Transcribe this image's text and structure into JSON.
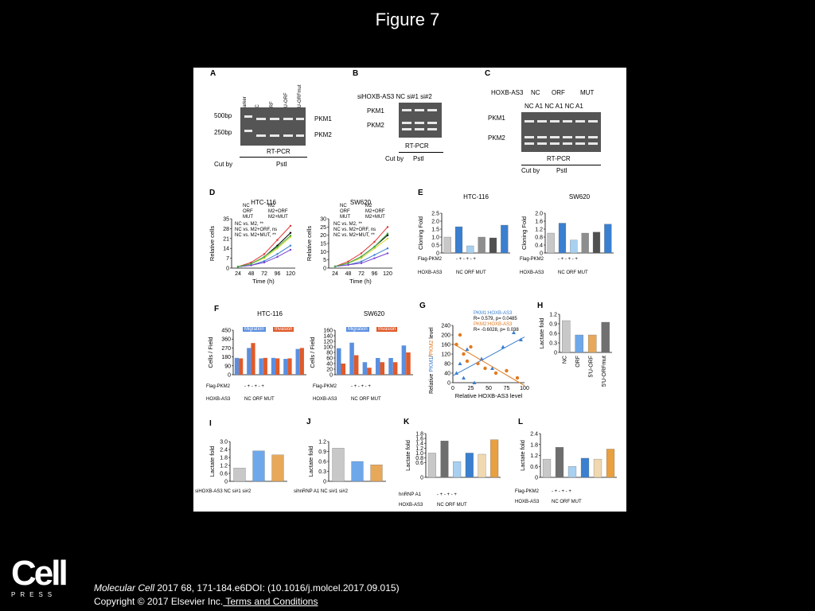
{
  "slide": {
    "title": "Figure 7"
  },
  "citation": {
    "journal": "Molecular Cell",
    "ref": " 2017 68, 171-184.e6DOI: (10.1016/j.molcel.2017.09.015)",
    "copyright": "Copyright © 2017 Elsevier Inc.",
    "link": " Terms and Conditions"
  },
  "logo": {
    "word": "Cell",
    "press": "PRESS"
  },
  "panelA": {
    "label": "A",
    "lanes": [
      "marker",
      "NC",
      "ORF",
      "5'U-ORF",
      "5'U-ORFmut"
    ],
    "size1": "500bp",
    "size2": "250bp",
    "band1": "PKM1",
    "band2": "PKM2",
    "method": "RT-PCR",
    "cut": "Cut by",
    "enzyme": "PstI"
  },
  "panelB": {
    "label": "B",
    "header": "siHOXB-AS3  NC  si#1  si#2",
    "band1": "PKM1",
    "band2": "PKM2",
    "method": "RT-PCR",
    "cut": "Cut by",
    "enzyme": "PstI"
  },
  "panelC": {
    "label": "C",
    "group": "HOXB-AS3",
    "g1": "NC",
    "g2": "ORF",
    "g3": "MUT",
    "sub": "NC A1  NC  A1  NC  A1",
    "band1": "PKM1",
    "band2": "PKM2",
    "method": "RT-PCR",
    "cut": "Cut by",
    "enzyme": "PstI"
  },
  "panelD": {
    "label": "D",
    "legend": [
      "NC",
      "M2",
      "ORF",
      "M2+ORF",
      "MUT",
      "M2+MUT"
    ],
    "stats": [
      "NC vs. M2, **",
      "NC vs. M2+ORF, ns",
      "NC vs. M2+MUT, **"
    ],
    "stats2": [
      "NC vs. M2, **",
      "NC vs. M2+ORF, ns",
      "NC vs. M2+MUT, **"
    ]
  },
  "panelE": {
    "label": "E",
    "rows": {
      "flag": "Flag-PKM2",
      "hox": "HOXB-AS3",
      "signs": "-   +    -   +    -   +",
      "groups": "NC     ORF     MUT"
    }
  },
  "panelF": {
    "label": "F",
    "legend": [
      "Migration",
      "Invasion"
    ],
    "rows": {
      "flag": "Flag-PKM2",
      "hox": "HOXB-AS3",
      "signs": "-   +    -   +    -   +",
      "groups": "NC     ORF     MUT"
    }
  },
  "panelG": {
    "label": "G",
    "legend1": "PKM1:HOXB-AS3",
    "stat1": "R= 0.579, p= 0.0485",
    "legend2": "PKM2:HOXB-AS3",
    "stat2": "R= -0.6028, p= 0.038",
    "ylabel_a": "Relative ",
    "ylabel_b": "PKM1",
    "ylabel_c": "/",
    "ylabel_d": "PKM2",
    "ylabel_e": " level"
  },
  "panelH": {
    "label": "H"
  },
  "panelI": {
    "label": "I",
    "row": "siHOXB-AS3  NC    si#1   si#2"
  },
  "panelJ": {
    "label": "J",
    "row": "sihnRNP A1  NC    si#1   si#2"
  },
  "panelK": {
    "label": "K",
    "rows": {
      "flag": "hnRNP A1",
      "hox": "HOXB-AS3",
      "signs": "-   +    -   +    -   +",
      "groups": "NC     ORF     MUT"
    }
  },
  "panelL": {
    "label": "L",
    "rows": {
      "flag": "Flag-PKM2",
      "hox": "HOXB-AS3",
      "signs": "-   +    -   +    -   +",
      "groups": "NC     ORF     MUT"
    }
  },
  "chart_data": [
    {
      "id": "D1",
      "type": "line",
      "title": "HTC-116",
      "xlabel": "Time (h)",
      "ylabel": "Relative cells",
      "x": [
        24,
        48,
        72,
        96,
        120
      ],
      "ylim": [
        0,
        35
      ],
      "yticks": [
        0,
        7,
        14,
        21,
        28,
        35
      ],
      "series": [
        {
          "name": "NC",
          "color": "#000000",
          "values": [
            1,
            3,
            8,
            16,
            25
          ]
        },
        {
          "name": "M2",
          "color": "#e03030",
          "values": [
            1,
            4,
            10,
            20,
            30
          ]
        },
        {
          "name": "ORF",
          "color": "#3a7fd0",
          "values": [
            1,
            2,
            5,
            10,
            16
          ]
        },
        {
          "name": "M2+ORF",
          "color": "#d8d830",
          "values": [
            1,
            3,
            7,
            14,
            22
          ]
        },
        {
          "name": "MUT",
          "color": "#7a3fd0",
          "values": [
            1,
            2,
            4,
            8,
            13
          ]
        },
        {
          "name": "M2+MUT",
          "color": "#40b040",
          "values": [
            1,
            3,
            8,
            15,
            23
          ]
        }
      ]
    },
    {
      "id": "D2",
      "type": "line",
      "title": "SW620",
      "xlabel": "Time (h)",
      "ylabel": "Relative cells",
      "x": [
        24,
        48,
        72,
        96,
        120
      ],
      "ylim": [
        0,
        30
      ],
      "yticks": [
        0,
        5,
        10,
        15,
        20,
        25,
        30
      ],
      "series": [
        {
          "name": "NC",
          "color": "#000000",
          "values": [
            1,
            3,
            7,
            13,
            20
          ]
        },
        {
          "name": "M2",
          "color": "#e03030",
          "values": [
            1,
            4,
            9,
            16,
            25
          ]
        },
        {
          "name": "ORF",
          "color": "#3a7fd0",
          "values": [
            1,
            2,
            4,
            8,
            12
          ]
        },
        {
          "name": "M2+ORF",
          "color": "#d8d830",
          "values": [
            1,
            3,
            6,
            12,
            18
          ]
        },
        {
          "name": "MUT",
          "color": "#7a3fd0",
          "values": [
            1,
            2,
            3,
            6,
            9
          ]
        },
        {
          "name": "M2+MUT",
          "color": "#40b040",
          "values": [
            1,
            3,
            7,
            13,
            21
          ]
        }
      ]
    },
    {
      "id": "E1",
      "type": "bar",
      "title": "HTC-116",
      "ylabel": "Cloning Fold",
      "ylim": [
        0,
        2.5
      ],
      "yticks": [
        "0",
        "0.5",
        "1.0",
        "1.5",
        "2.0",
        "2.5"
      ],
      "values": [
        1.0,
        1.65,
        0.45,
        1.0,
        0.95,
        1.75
      ],
      "colors": [
        "#c8c8c8",
        "#3a7fd0",
        "#a8d0f0",
        "#8e8e8e",
        "#505050",
        "#3a7fd0"
      ]
    },
    {
      "id": "E2",
      "type": "bar",
      "title": "SW620",
      "ylabel": "Cloning Fold",
      "ylim": [
        0,
        2.0
      ],
      "yticks": [
        "0",
        "0.4",
        "0.8",
        "1.2",
        "1.6",
        "2.0"
      ],
      "values": [
        1.0,
        1.5,
        0.65,
        1.0,
        1.05,
        1.45
      ],
      "colors": [
        "#c8c8c8",
        "#3a7fd0",
        "#a8d0f0",
        "#8e8e8e",
        "#505050",
        "#3a7fd0"
      ]
    },
    {
      "id": "F1",
      "type": "bar",
      "title": "HTC-116",
      "ylabel": "Cells / Field",
      "ylim": [
        0,
        450
      ],
      "yticks": [
        "0",
        "90",
        "180",
        "270",
        "360",
        "450"
      ],
      "groups": 6,
      "series": [
        {
          "name": "Migration",
          "color": "#5a8fe0",
          "values": [
            170,
            270,
            165,
            170,
            160,
            260
          ]
        },
        {
          "name": "Invasion",
          "color": "#e05a2a",
          "values": [
            165,
            320,
            170,
            165,
            165,
            270
          ]
        }
      ]
    },
    {
      "id": "F2",
      "type": "bar",
      "title": "SW620",
      "ylabel": "Cells / Field",
      "ylim": [
        0,
        160
      ],
      "yticks": [
        "0",
        "20",
        "40",
        "60",
        "80",
        "100",
        "120",
        "140",
        "160"
      ],
      "groups": 6,
      "series": [
        {
          "name": "Migration",
          "color": "#5a8fe0",
          "values": [
            95,
            115,
            45,
            60,
            60,
            105
          ]
        },
        {
          "name": "Invasion",
          "color": "#e05a2a",
          "values": [
            40,
            70,
            25,
            45,
            45,
            80
          ]
        }
      ]
    },
    {
      "id": "G",
      "type": "scatter",
      "xlabel": "Relative HOXB-AS3 level",
      "xlim": [
        0,
        100
      ],
      "ylim": [
        0,
        240
      ],
      "xticks": [
        0,
        25,
        50,
        75,
        100
      ],
      "yticks": [
        0,
        40,
        80,
        120,
        160,
        200,
        240
      ],
      "series": [
        {
          "name": "PKM1:HOXB-AS3",
          "color": "#3a7fd0",
          "points": [
            [
              5,
              40
            ],
            [
              10,
              80
            ],
            [
              15,
              20
            ],
            [
              20,
              140
            ],
            [
              30,
              0
            ],
            [
              40,
              100
            ],
            [
              55,
              60
            ],
            [
              70,
              150
            ],
            [
              85,
              210
            ],
            [
              95,
              180
            ]
          ]
        },
        {
          "name": "PKM2:HOXB-AS3",
          "color": "#e07a20",
          "points": [
            [
              5,
              160
            ],
            [
              10,
              200
            ],
            [
              15,
              120
            ],
            [
              20,
              90
            ],
            [
              25,
              150
            ],
            [
              35,
              80
            ],
            [
              45,
              60
            ],
            [
              60,
              40
            ],
            [
              75,
              50
            ],
            [
              90,
              20
            ]
          ]
        }
      ]
    },
    {
      "id": "H",
      "type": "bar",
      "ylabel": "Lactate fold",
      "ylim": [
        0,
        1.2
      ],
      "yticks": [
        "0",
        "0.3",
        "0.6",
        "0.9",
        "1.2"
      ],
      "categories": [
        "NC",
        "ORF",
        "5'U-ORF",
        "5'U-ORFmut"
      ],
      "values": [
        1.0,
        0.55,
        0.55,
        0.95
      ],
      "colors": [
        "#c8c8c8",
        "#6fa8ea",
        "#e8a85a",
        "#707070"
      ]
    },
    {
      "id": "I",
      "type": "bar",
      "ylabel": "Lactate fold",
      "ylim": [
        0,
        3.0
      ],
      "yticks": [
        "0",
        "0.6",
        "1.2",
        "1.8",
        "2.4",
        "3.0"
      ],
      "values": [
        1.0,
        2.3,
        2.0
      ],
      "colors": [
        "#c8c8c8",
        "#6fa8ea",
        "#e8a85a"
      ]
    },
    {
      "id": "J",
      "type": "bar",
      "ylabel": "Lactate fold",
      "ylim": [
        0,
        1.2
      ],
      "yticks": [
        "0",
        "0.3",
        "0.6",
        "0.9",
        "1.2"
      ],
      "values": [
        1.0,
        0.6,
        0.5
      ],
      "colors": [
        "#c8c8c8",
        "#6fa8ea",
        "#e8a85a"
      ]
    },
    {
      "id": "K",
      "type": "bar",
      "ylabel": "Lactate fold",
      "ylim": [
        0,
        1.8
      ],
      "yticks": [
        "0",
        "0.6",
        "0.8",
        "1.0",
        "1.2",
        "1.4",
        "1.6",
        "1.8"
      ],
      "values": [
        1.0,
        1.5,
        0.65,
        1.0,
        0.95,
        1.55
      ],
      "colors": [
        "#c8c8c8",
        "#6e6e6e",
        "#a8d0f0",
        "#3a7fd0",
        "#f0d8b0",
        "#e8a040"
      ]
    },
    {
      "id": "L",
      "type": "bar",
      "ylabel": "Lactate fold",
      "ylim": [
        0,
        2.4
      ],
      "yticks": [
        "0",
        "0.6",
        "1.2",
        "1.8",
        "2.4"
      ],
      "values": [
        1.0,
        1.65,
        0.6,
        1.05,
        1.0,
        1.55
      ],
      "colors": [
        "#c8c8c8",
        "#6e6e6e",
        "#a8d0f0",
        "#3a7fd0",
        "#f0d8b0",
        "#e8a040"
      ]
    }
  ]
}
